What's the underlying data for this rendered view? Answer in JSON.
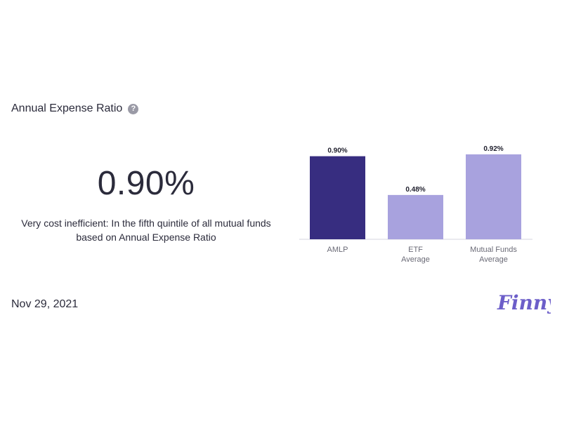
{
  "header": {
    "title": "Annual Expense Ratio",
    "help_icon": "question-mark-icon"
  },
  "summary": {
    "value": "0.90%",
    "description": "Very cost inefficient: In the fifth quintile of all mutual funds based on Annual Expense Ratio"
  },
  "footer": {
    "date": "Nov 29, 2021",
    "logo_text": "Finny"
  },
  "colors": {
    "primary_bar": "#372d80",
    "secondary_bar": "#a8a2de",
    "logo": "#6c5ec9",
    "text": "#2b2b3b",
    "axis": "#e3e3ea",
    "help_icon": "#9a9aa6"
  },
  "chart_data": {
    "type": "bar",
    "categories": [
      [
        "AMLP"
      ],
      [
        "ETF",
        "Average"
      ],
      [
        "Mutual Funds",
        "Average"
      ]
    ],
    "values": [
      0.9,
      0.48,
      0.92
    ],
    "value_labels": [
      "0.90%",
      "0.48%",
      "0.92%"
    ],
    "highlight_index": 0,
    "ylim": [
      0,
      0.92
    ],
    "grid": false,
    "legend": "none"
  }
}
